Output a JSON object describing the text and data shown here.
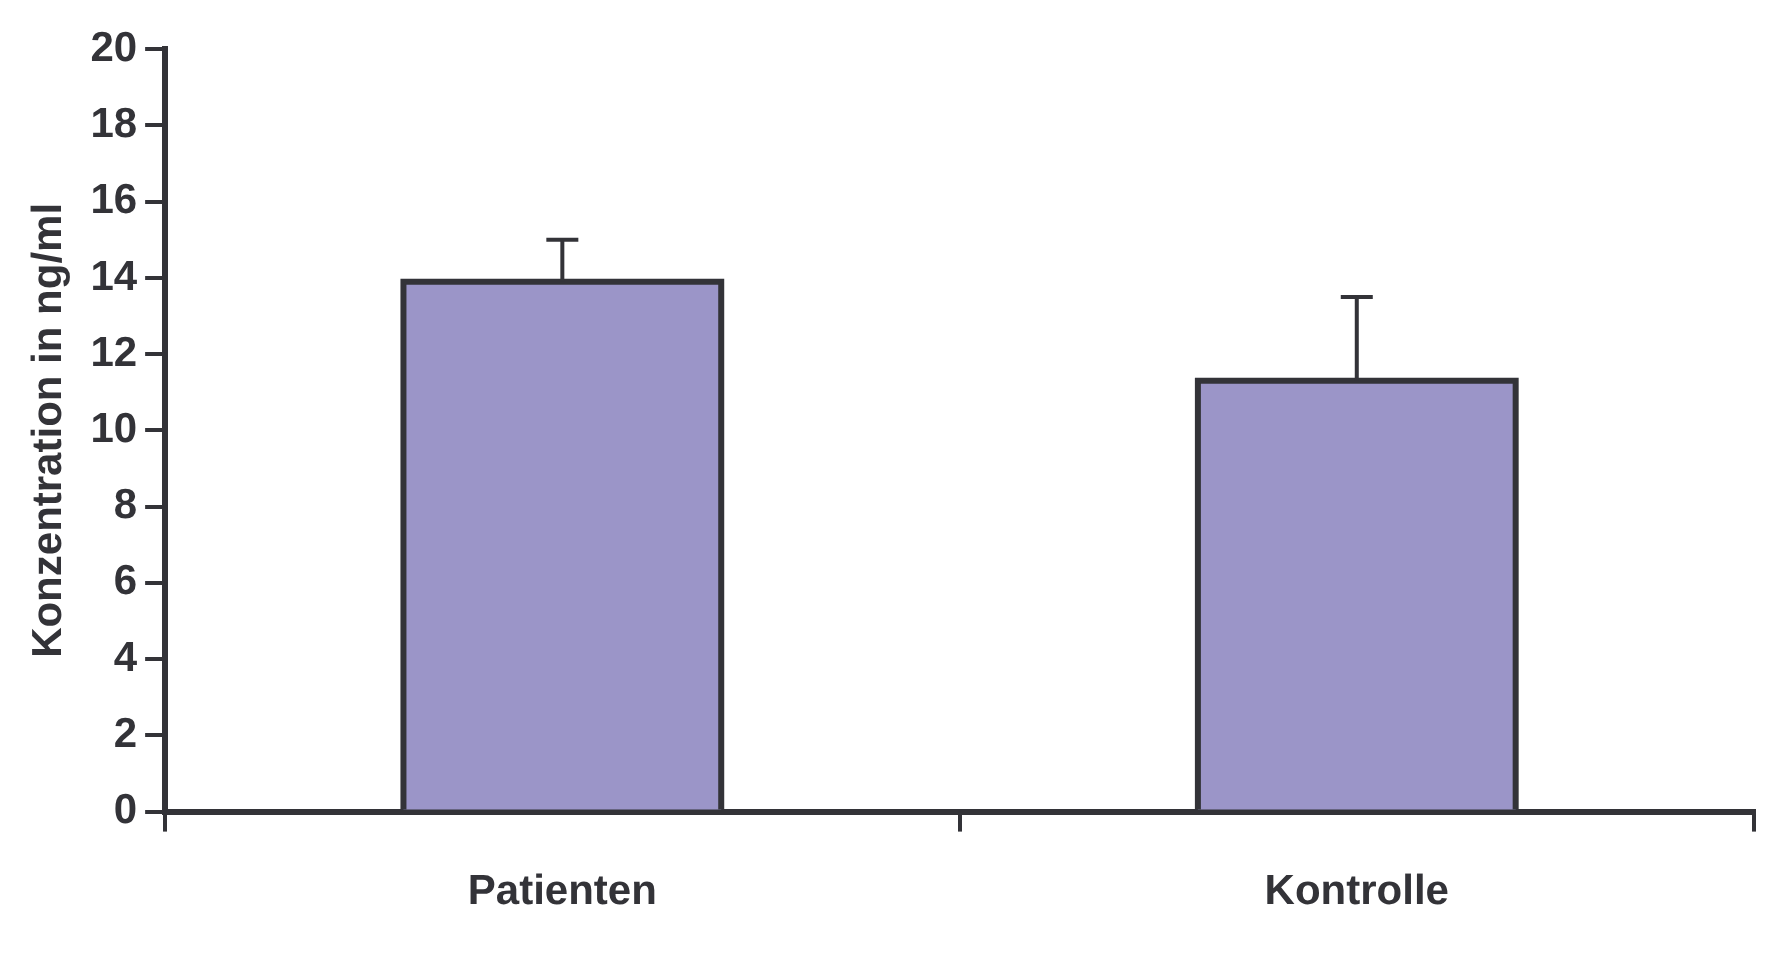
{
  "chart_data": {
    "type": "bar",
    "ylabel": "Konzentration in ng/ml",
    "categories": [
      "Patienten",
      "Kontrolle"
    ],
    "values": [
      13.9,
      11.3
    ],
    "color": "#9b95c8",
    "errors": [
      [
        13.9,
        15.0
      ],
      [
        11.3,
        13.5
      ]
    ],
    "ylim": [
      0,
      20
    ],
    "yticks": [
      0,
      2,
      4,
      6,
      8,
      10,
      12,
      14,
      16,
      18,
      20
    ],
    "grid": false,
    "legend": false
  }
}
